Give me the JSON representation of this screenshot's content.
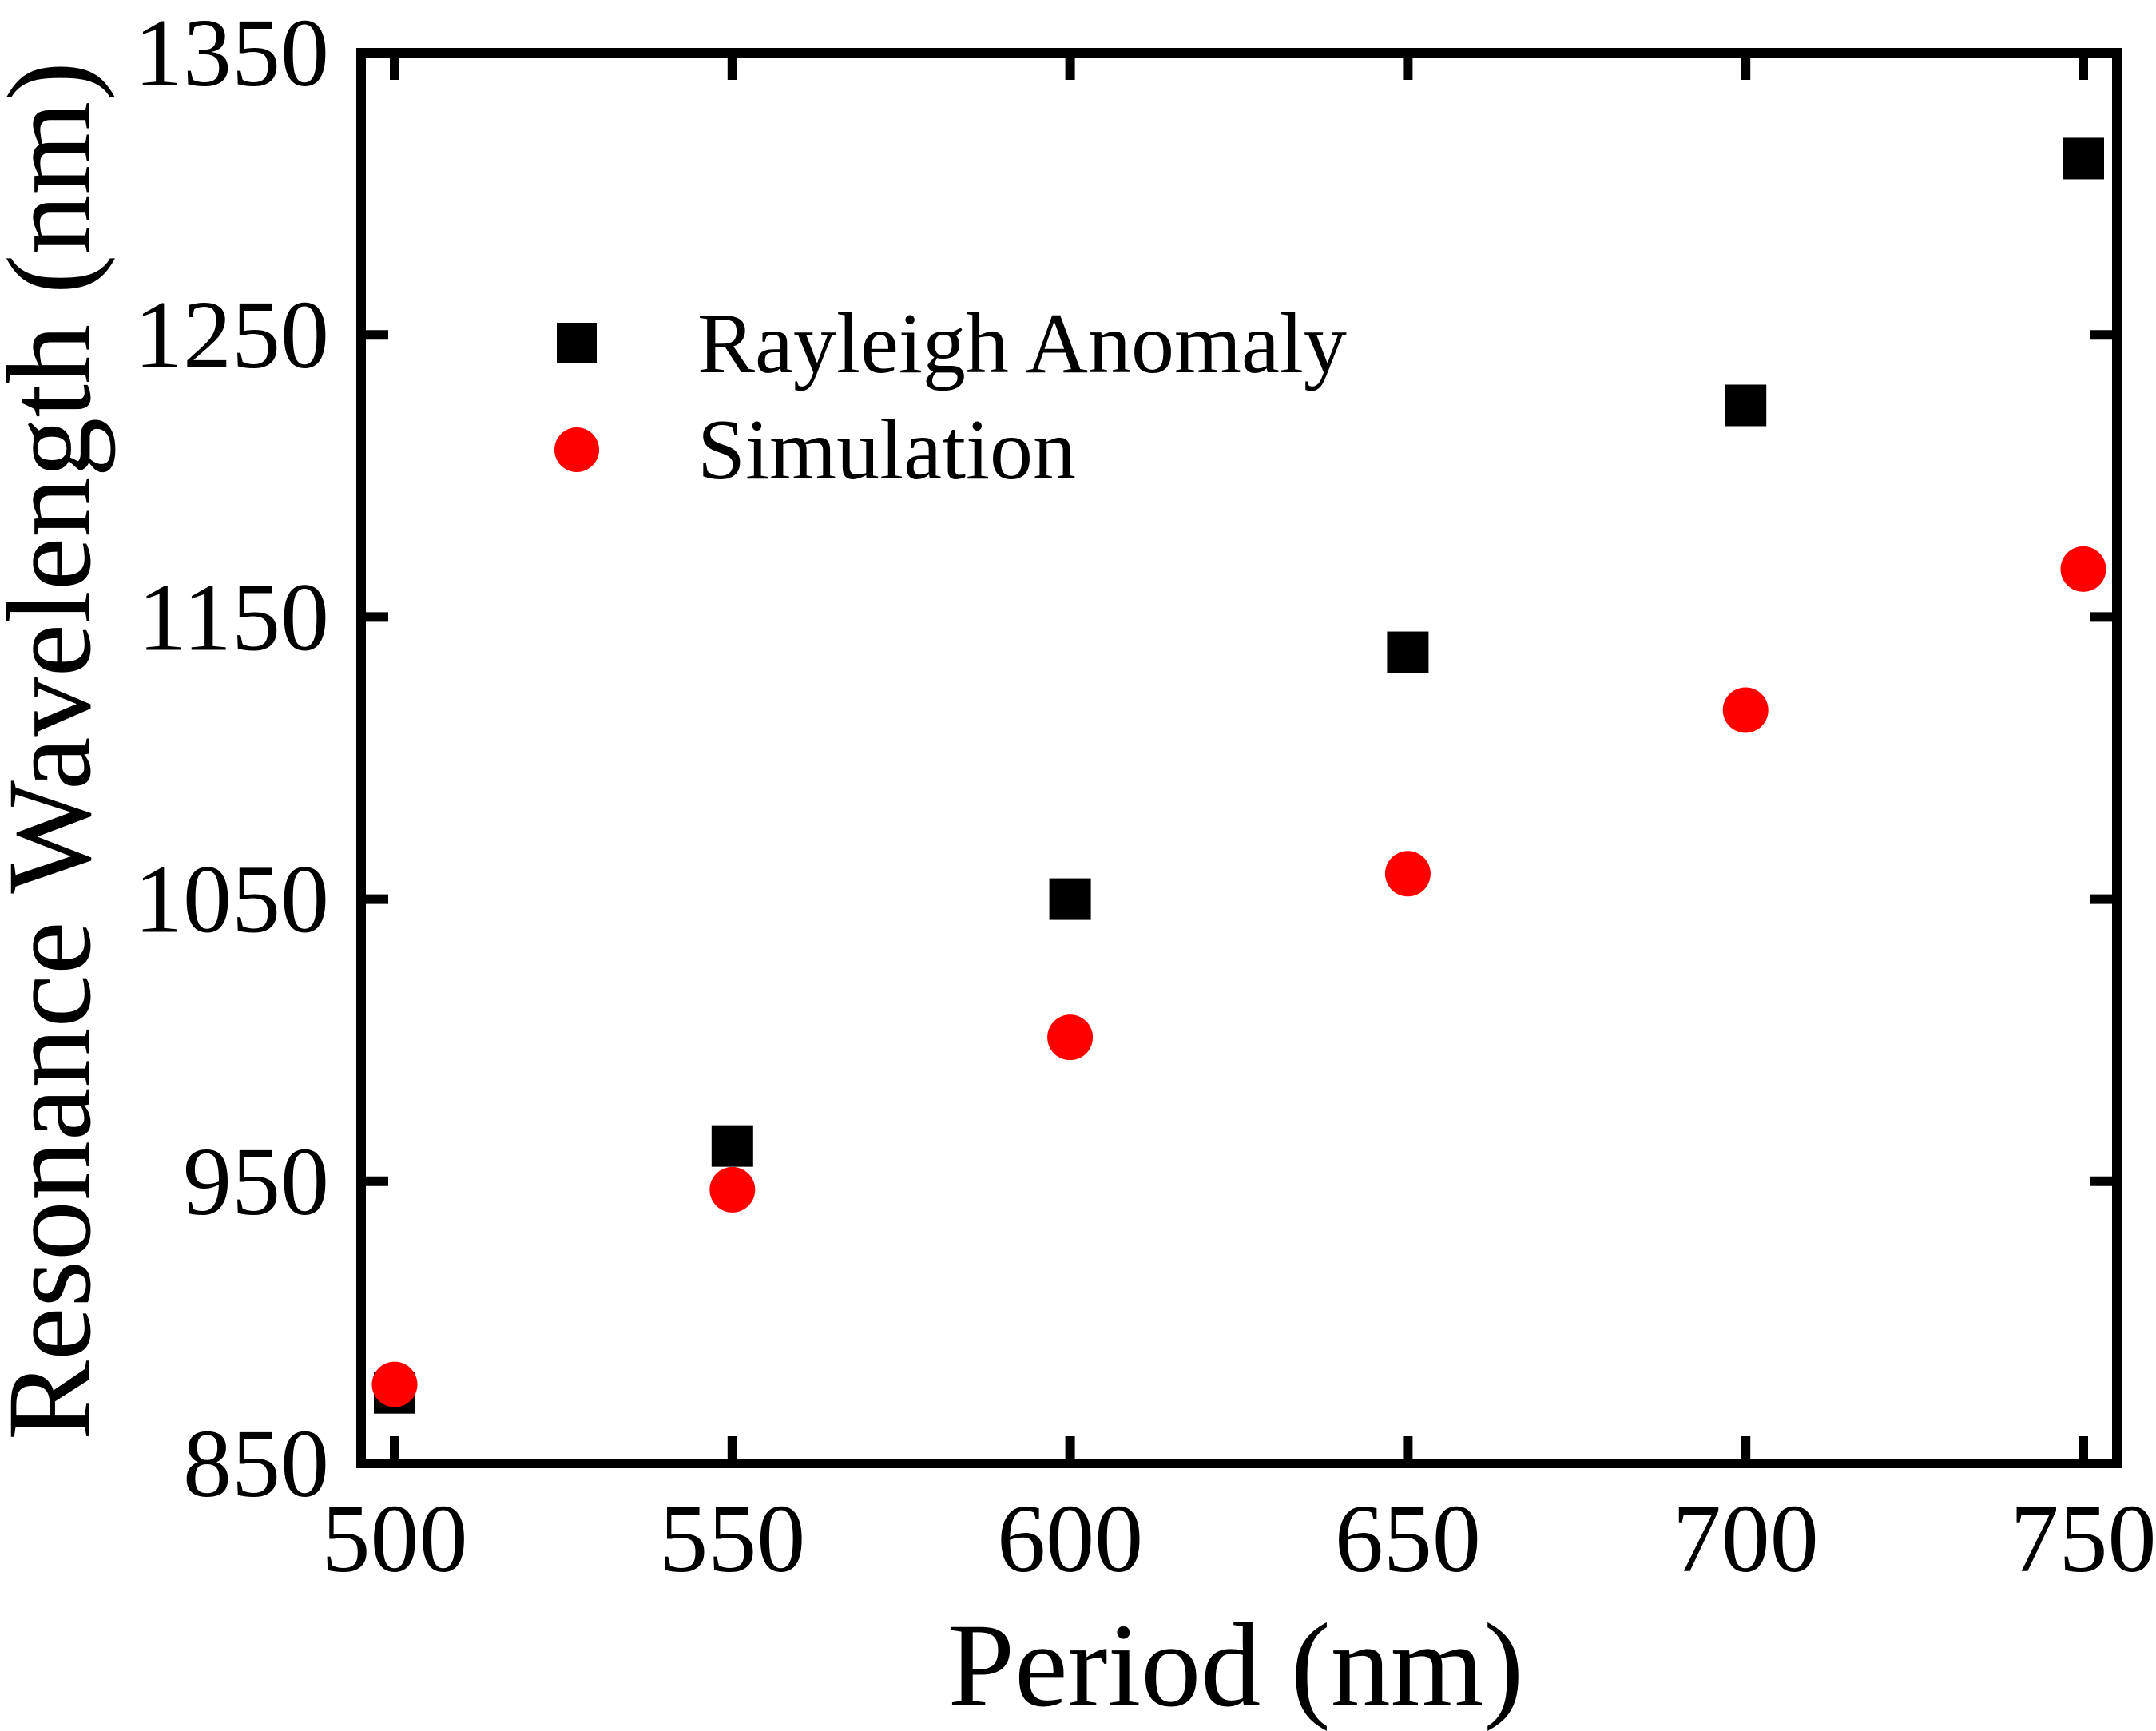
{
  "chart_data": {
    "type": "scatter",
    "title": "",
    "xlabel": "Period (nm)",
    "ylabel": "Resonance Wavelength (nm)",
    "xlim": [
      495,
      755
    ],
    "ylim": [
      850,
      1350
    ],
    "x_ticks": [
      500,
      550,
      600,
      650,
      700,
      750
    ],
    "x_tick_labels": [
      "500",
      "550",
      "600",
      "650",
      "700",
      "750"
    ],
    "y_ticks": [
      850,
      950,
      1050,
      1150,
      1250,
      1350
    ],
    "y_tick_labels": [
      "850",
      "950",
      "1050",
      "1150",
      "1250",
      "1350"
    ],
    "grid": false,
    "legend_position": "upper-left",
    "x": [
      500,
      550,
      600,
      650,
      700,
      750
    ],
    "series": [
      {
        "name": "Rayleigh Anomaly",
        "marker": "square",
        "color": "#000000",
        "values": [
          875,
          962.5,
          1050,
          1137.5,
          1225,
          1312.5
        ]
      },
      {
        "name": "Simulation",
        "marker": "circle",
        "color": "#ff0000",
        "values": [
          878,
          947,
          1001,
          1059,
          1117,
          1167
        ]
      }
    ]
  }
}
